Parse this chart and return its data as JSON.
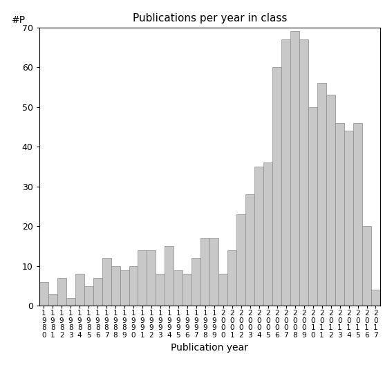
{
  "title": "Publications per year in class",
  "xlabel": "Publication year",
  "ylabel": "#P",
  "bar_color": "#c8c8c8",
  "bar_edge_color": "#888888",
  "background_color": "#ffffff",
  "years": [
    1980,
    1981,
    1982,
    1983,
    1984,
    1985,
    1986,
    1987,
    1988,
    1989,
    1990,
    1991,
    1992,
    1993,
    1994,
    1995,
    1996,
    1997,
    1998,
    1999,
    2000,
    2001,
    2002,
    2003,
    2004,
    2005,
    2006,
    2007,
    2008,
    2009,
    2010,
    2011,
    2012,
    2013,
    2014,
    2015,
    2016,
    2017
  ],
  "values": [
    6,
    3,
    7,
    2,
    8,
    5,
    7,
    12,
    10,
    9,
    10,
    14,
    14,
    8,
    15,
    9,
    8,
    12,
    17,
    17,
    8,
    14,
    23,
    28,
    35,
    36,
    60,
    67,
    69,
    67,
    50,
    56,
    53,
    46,
    44,
    46,
    20,
    4
  ],
  "ylim": [
    0,
    70
  ],
  "yticks": [
    0,
    10,
    20,
    30,
    40,
    50,
    60,
    70
  ]
}
